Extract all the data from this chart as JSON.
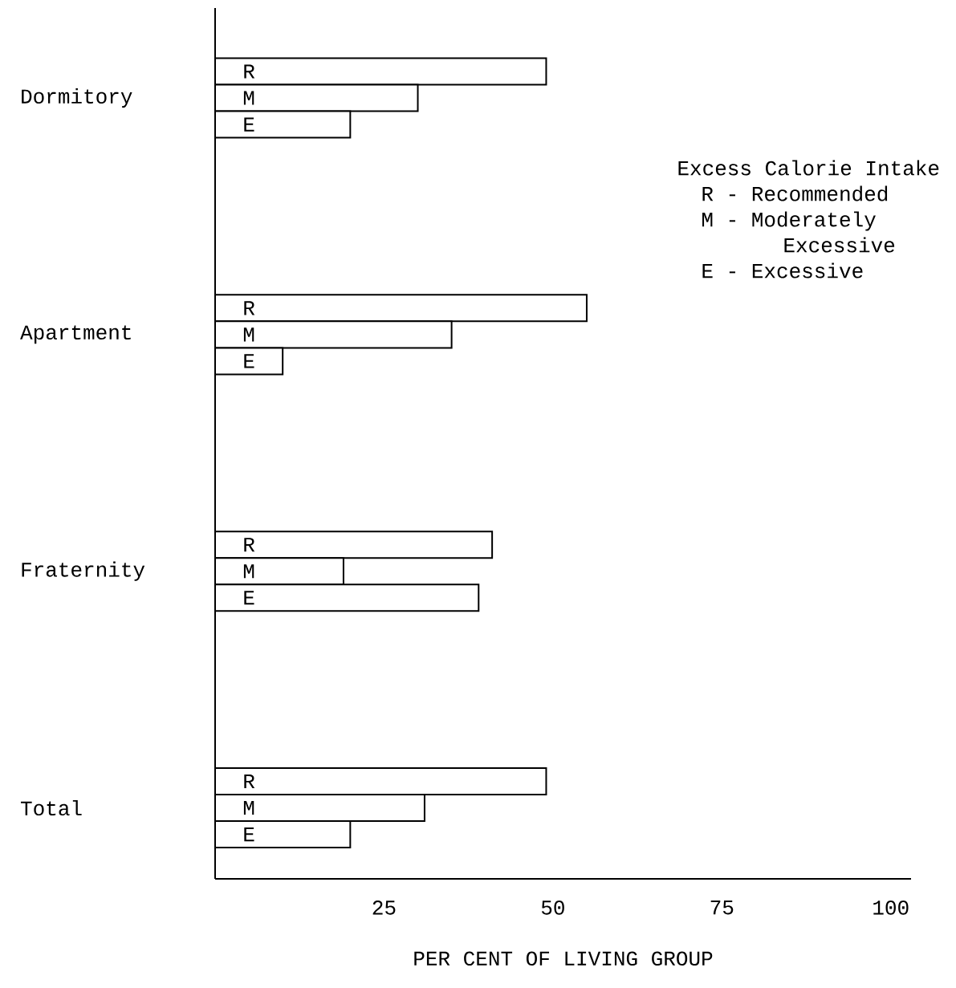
{
  "chart_data": {
    "type": "bar",
    "orientation": "horizontal",
    "xlabel": "PER CENT OF LIVING GROUP",
    "legend_title": "Excess Calorie Intake",
    "categories": [
      "Dormitory",
      "Apartment",
      "Fraternity",
      "Total"
    ],
    "series": [
      {
        "name": "R",
        "color": "#ffffff",
        "values": [
          49,
          55,
          41,
          49
        ]
      },
      {
        "name": "M",
        "color": "#ffffff",
        "values": [
          30,
          35,
          19,
          31
        ]
      },
      {
        "name": "E",
        "color": "#ffffff",
        "values": [
          20,
          10,
          39,
          20
        ]
      }
    ],
    "annotations": [
      "R - Recommended",
      "M - Moderately Excessive",
      "E - Excessive"
    ],
    "xlim": [
      0,
      103
    ],
    "xticks": [
      25,
      50,
      75,
      100
    ]
  }
}
